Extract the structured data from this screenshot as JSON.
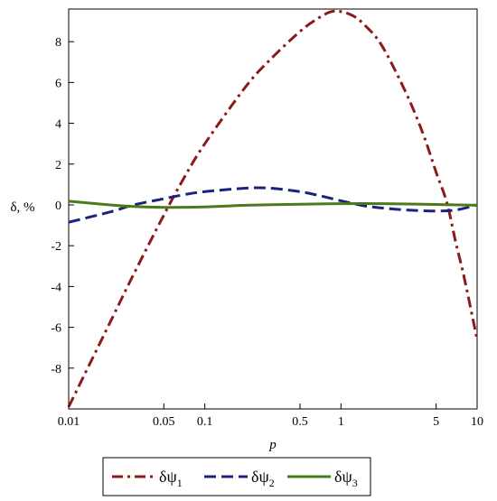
{
  "chart_data": {
    "type": "line",
    "title": "",
    "xlabel": "p",
    "ylabel": "δ, %",
    "xscale": "log",
    "xlim": [
      0.01,
      10
    ],
    "ylim": [
      -10,
      9.6
    ],
    "grid": false,
    "legend_position": "bottom",
    "x_ticks": [
      {
        "value": 0.01,
        "label": "0.01"
      },
      {
        "value": 0.05,
        "label": "0.05"
      },
      {
        "value": 0.1,
        "label": "0.1"
      },
      {
        "value": 0.5,
        "label": "0.5"
      },
      {
        "value": 1,
        "label": "1"
      },
      {
        "value": 5,
        "label": "5"
      },
      {
        "value": 10,
        "label": "10"
      }
    ],
    "y_ticks": [
      {
        "value": 8,
        "label": "8"
      },
      {
        "value": 6,
        "label": "6"
      },
      {
        "value": 4,
        "label": "4"
      },
      {
        "value": 2,
        "label": "2"
      },
      {
        "value": 0,
        "label": "0"
      },
      {
        "value": -2,
        "label": "-2"
      },
      {
        "value": -4,
        "label": "-4"
      },
      {
        "value": -6,
        "label": "-6"
      },
      {
        "value": -8,
        "label": "-8"
      }
    ],
    "series": [
      {
        "name": "δψ1",
        "name_base": "δψ",
        "name_sub": "1",
        "color": "#8b1a1a",
        "dash": "dashdot",
        "x": [
          0.01,
          0.02,
          0.03,
          0.05,
          0.07,
          0.1,
          0.2,
          0.3,
          0.5,
          0.7,
          0.9,
          1.2,
          1.5,
          2,
          3,
          4,
          5,
          6,
          7,
          8,
          10
        ],
        "y": [
          -9.9,
          -5.8,
          -3.4,
          -0.5,
          1.3,
          3.0,
          5.8,
          7.1,
          8.5,
          9.2,
          9.5,
          9.3,
          8.8,
          7.8,
          5.5,
          3.5,
          1.6,
          0.1,
          -1.9,
          -3.5,
          -6.6
        ]
      },
      {
        "name": "δψ2",
        "name_base": "δψ",
        "name_sub": "2",
        "color": "#1a237e",
        "dash": "dashed",
        "x": [
          0.01,
          0.02,
          0.03,
          0.05,
          0.07,
          0.1,
          0.2,
          0.3,
          0.5,
          0.7,
          1,
          1.5,
          2,
          3,
          5,
          7,
          10
        ],
        "y": [
          -0.85,
          -0.35,
          0.0,
          0.3,
          0.5,
          0.65,
          0.82,
          0.82,
          0.65,
          0.45,
          0.2,
          -0.05,
          -0.15,
          -0.25,
          -0.3,
          -0.25,
          0.0
        ]
      },
      {
        "name": "δψ3",
        "name_base": "δψ",
        "name_sub": "3",
        "color": "#4a7a1a",
        "dash": "solid",
        "x": [
          0.01,
          0.02,
          0.03,
          0.05,
          0.1,
          0.2,
          0.5,
          1,
          2,
          5,
          10
        ],
        "y": [
          0.18,
          0.0,
          -0.08,
          -0.12,
          -0.1,
          -0.02,
          0.03,
          0.06,
          0.06,
          0.02,
          -0.02
        ]
      }
    ]
  }
}
